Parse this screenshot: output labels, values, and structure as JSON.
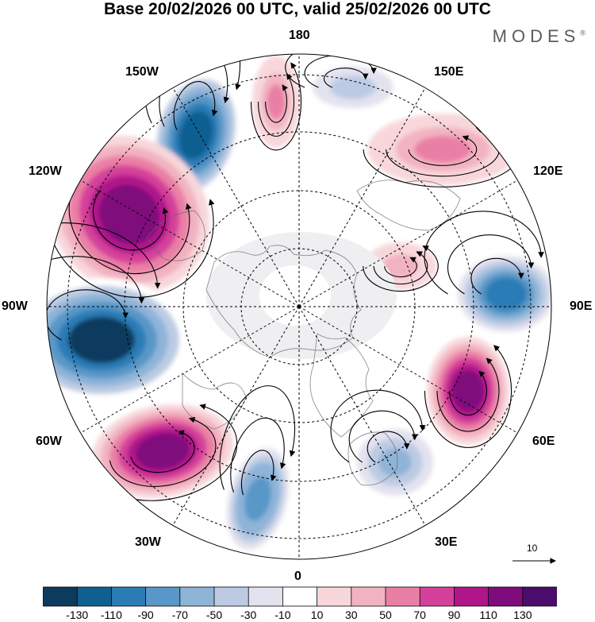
{
  "title": "Base 20/02/2026 00 UTC, valid 25/02/2026 00 UTC",
  "brand": {
    "name": "MODES",
    "mark": "®"
  },
  "longitude_labels": {
    "north": "180",
    "south": "0",
    "west": "90W",
    "east": "90E",
    "nw1": "150W",
    "nw2": "120W",
    "ne1": "150E",
    "ne2": "120E",
    "sw1": "60W",
    "sw2": "30W",
    "se1": "60E",
    "se2": "30E"
  },
  "reference_vector": {
    "value": "10"
  },
  "colorbar": {
    "ticks": [
      "-130",
      "-110",
      "-90",
      "-70",
      "-50",
      "-30",
      "-10",
      "10",
      "30",
      "50",
      "70",
      "90",
      "110",
      "130"
    ],
    "colors": [
      "#0d3b5e",
      "#105f91",
      "#2b7cb6",
      "#5897c7",
      "#8eb4d8",
      "#bccbe3",
      "#e3e2ef",
      "#ffffff",
      "#f8d7db",
      "#f2b3c1",
      "#ea7fa6",
      "#d5419a",
      "#b0158a",
      "#7f0c7c",
      "#4a0d6b"
    ]
  },
  "anomalies": [
    {
      "name": "low-150w",
      "value": -120
    },
    {
      "name": "high-120w",
      "value": 125
    },
    {
      "name": "low-90w",
      "value": -135
    },
    {
      "name": "high-60w",
      "value": 125
    },
    {
      "name": "low-30w",
      "value": -85
    },
    {
      "name": "high-180",
      "value": 50
    },
    {
      "name": "low-165e",
      "value": -40
    },
    {
      "name": "high-130e",
      "value": 55
    },
    {
      "name": "low-90e",
      "value": -105
    },
    {
      "name": "high-60e",
      "value": 115
    },
    {
      "name": "low-30e",
      "value": -55
    },
    {
      "name": "high-100e",
      "value": 35
    }
  ]
}
